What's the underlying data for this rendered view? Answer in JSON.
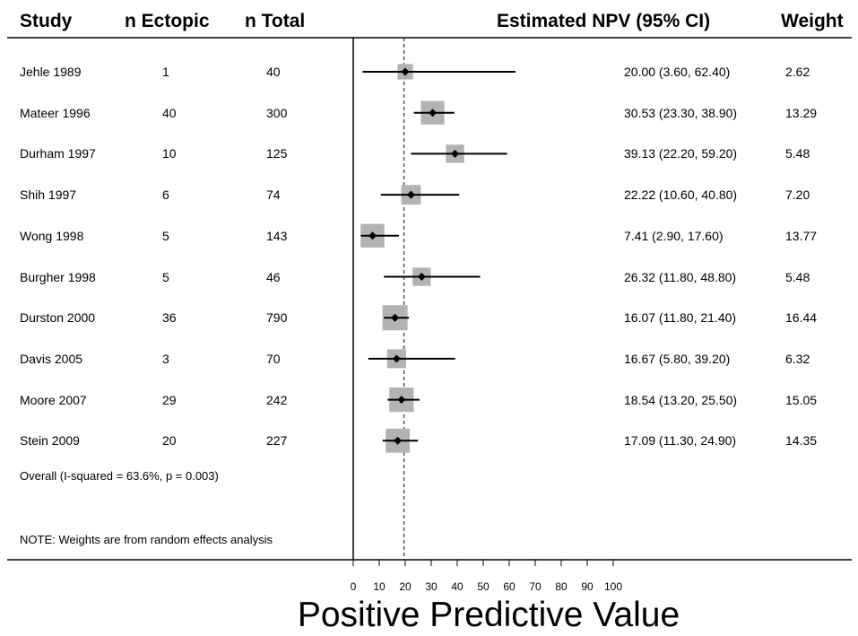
{
  "chart_data": {
    "type": "forest",
    "columns": {
      "study": "Study",
      "n_ectopic": "n Ectopic",
      "n_total": "n Total",
      "estimate": "Estimated NPV (95% CI)",
      "weight": "Weight"
    },
    "studies": [
      {
        "study": "Jehle 1989",
        "n_ectopic": "1",
        "n_total": "40",
        "estimate": 20.0,
        "ci_low": 3.6,
        "ci_high": 62.4,
        "ci_text": "20.00 (3.60, 62.40)",
        "weight": 2.62,
        "weight_text": "2.62"
      },
      {
        "study": "Mateer 1996",
        "n_ectopic": "40",
        "n_total": "300",
        "estimate": 30.53,
        "ci_low": 23.3,
        "ci_high": 38.9,
        "ci_text": "30.53 (23.30, 38.90)",
        "weight": 13.29,
        "weight_text": "13.29"
      },
      {
        "study": "Durham 1997",
        "n_ectopic": "10",
        "n_total": "125",
        "estimate": 39.13,
        "ci_low": 22.2,
        "ci_high": 59.2,
        "ci_text": "39.13 (22.20, 59.20)",
        "weight": 5.48,
        "weight_text": "5.48"
      },
      {
        "study": "Shih 1997",
        "n_ectopic": "6",
        "n_total": "74",
        "estimate": 22.22,
        "ci_low": 10.6,
        "ci_high": 40.8,
        "ci_text": "22.22 (10.60, 40.80)",
        "weight": 7.2,
        "weight_text": "7.20"
      },
      {
        "study": "Wong 1998",
        "n_ectopic": "5",
        "n_total": "143",
        "estimate": 7.41,
        "ci_low": 2.9,
        "ci_high": 17.6,
        "ci_text": "7.41 (2.90, 17.60)",
        "weight": 13.77,
        "weight_text": "13.77"
      },
      {
        "study": "Burgher 1998",
        "n_ectopic": "5",
        "n_total": "46",
        "estimate": 26.32,
        "ci_low": 11.8,
        "ci_high": 48.8,
        "ci_text": "26.32 (11.80, 48.80)",
        "weight": 5.48,
        "weight_text": "5.48"
      },
      {
        "study": "Durston 2000",
        "n_ectopic": "36",
        "n_total": "790",
        "estimate": 16.07,
        "ci_low": 11.8,
        "ci_high": 21.4,
        "ci_text": "16.07 (11.80, 21.40)",
        "weight": 16.44,
        "weight_text": "16.44"
      },
      {
        "study": "Davis 2005",
        "n_ectopic": "3",
        "n_total": "70",
        "estimate": 16.67,
        "ci_low": 5.8,
        "ci_high": 39.2,
        "ci_text": "16.67 (5.80, 39.20)",
        "weight": 6.32,
        "weight_text": "6.32"
      },
      {
        "study": "Moore 2007",
        "n_ectopic": "29",
        "n_total": "242",
        "estimate": 18.54,
        "ci_low": 13.2,
        "ci_high": 25.5,
        "ci_text": "18.54 (13.20, 25.50)",
        "weight": 15.05,
        "weight_text": "15.05"
      },
      {
        "study": "Stein 2009",
        "n_ectopic": "20",
        "n_total": "227",
        "estimate": 17.09,
        "ci_low": 11.3,
        "ci_high": 24.9,
        "ci_text": "17.09 (11.30, 24.90)",
        "weight": 14.35,
        "weight_text": "14.35"
      }
    ],
    "overall_label": "Overall  (I-squared = 63.6%, p = 0.003)",
    "overall_estimate": 19.5,
    "note": "NOTE: Weights are from random effects analysis",
    "xlabel": "Positive Predictive Value",
    "xlim": [
      0,
      100
    ],
    "xticks": [
      0,
      10,
      20,
      30,
      40,
      50,
      60,
      70,
      80,
      90,
      100
    ],
    "grid": false,
    "colors": {
      "box": "#b3b3b3",
      "line": "#000000",
      "dashed": "#333333"
    }
  }
}
